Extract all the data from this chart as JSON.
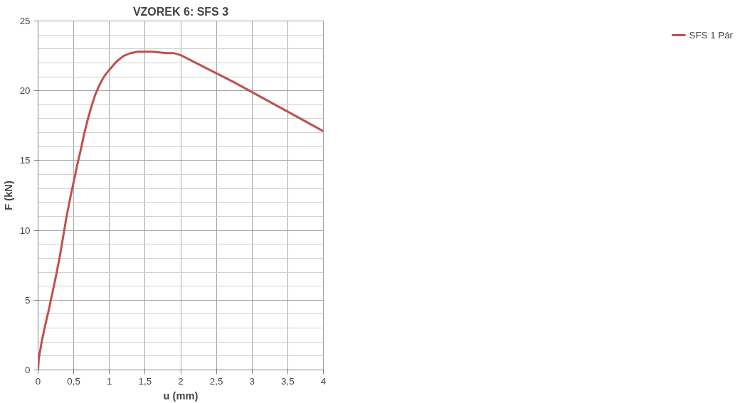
{
  "chart_data": {
    "type": "line",
    "title": "VZOREK 6: SFS 3",
    "xlabel": "u (mm)",
    "ylabel": "F (kN)",
    "x": [
      0,
      0.01,
      0.05,
      0.1,
      0.15,
      0.2,
      0.25,
      0.3,
      0.35,
      0.4,
      0.45,
      0.5,
      0.55,
      0.6,
      0.65,
      0.7,
      0.75,
      0.8,
      0.85,
      0.9,
      0.95,
      1.0,
      1.1,
      1.2,
      1.3,
      1.4,
      1.5,
      1.6,
      1.7,
      1.8,
      1.9,
      2.0,
      2.25,
      2.5,
      2.75,
      3.0,
      3.25,
      3.5,
      3.75,
      4.0
    ],
    "series": [
      {
        "name": "SFS 1 Pár",
        "color": "#c0504d",
        "values": [
          0,
          0.8,
          2,
          3.2,
          4.3,
          5.5,
          6.7,
          8,
          9.5,
          11,
          12.3,
          13.5,
          14.7,
          15.8,
          17,
          18,
          18.9,
          19.7,
          20.3,
          20.8,
          21.2,
          21.5,
          22.1,
          22.5,
          22.7,
          22.8,
          22.8,
          22.8,
          22.75,
          22.7,
          22.7,
          22.55,
          21.9,
          21.25,
          20.6,
          19.9,
          19.2,
          18.5,
          17.8,
          17.1
        ]
      }
    ],
    "xlim": [
      0,
      4
    ],
    "ylim": [
      0,
      25
    ],
    "xticks": [
      0,
      {
        "value": 0.5,
        "label": "0,5"
      },
      1,
      {
        "value": 1.5,
        "label": "1,5"
      },
      2,
      {
        "value": 2.5,
        "label": "2,5"
      },
      3,
      {
        "value": 3.5,
        "label": "3,5"
      },
      4
    ],
    "yticks": [
      0,
      5,
      10,
      15,
      20,
      25
    ],
    "grid": true,
    "legend": "right",
    "marker": "none",
    "line_style": "solid"
  }
}
